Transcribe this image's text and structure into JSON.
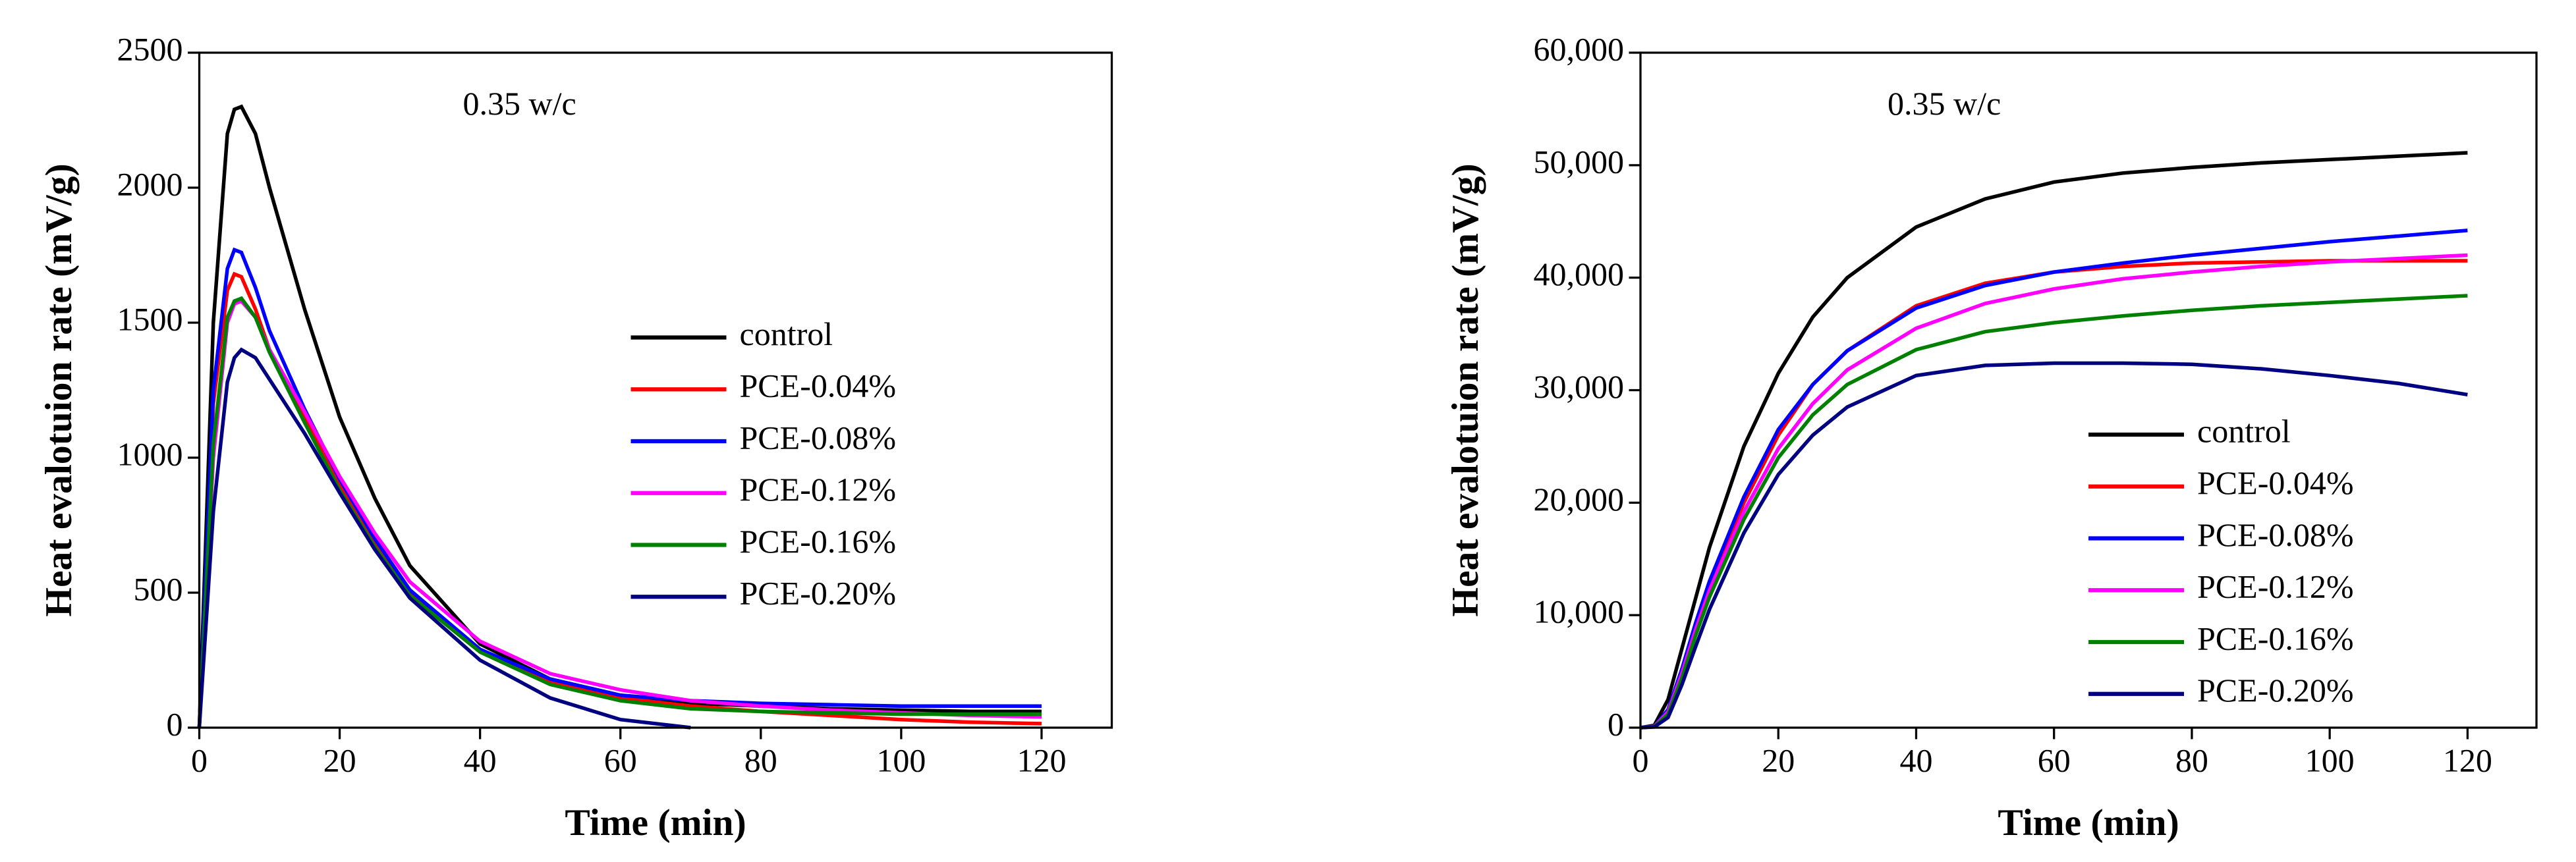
{
  "chart_data": [
    {
      "type": "line",
      "annotation": "0.35 w/c",
      "x_label": "Time (min)",
      "y_label": "Heat evalotuion rate (mV/g)",
      "xlim": [
        0,
        130
      ],
      "xticks": [
        0,
        20,
        40,
        60,
        80,
        100,
        120
      ],
      "ylim": [
        0,
        2500
      ],
      "yticks": [
        0,
        500,
        1000,
        1500,
        2000,
        2500
      ],
      "legend": "center-right",
      "x": [
        0,
        2,
        4,
        5,
        6,
        8,
        10,
        15,
        20,
        25,
        30,
        40,
        50,
        60,
        70,
        80,
        90,
        100,
        110,
        120
      ],
      "series": [
        {
          "name": "control",
          "color": "#000000",
          "values": [
            0,
            1500,
            2200,
            2290,
            2300,
            2200,
            2000,
            1550,
            1150,
            850,
            600,
            310,
            180,
            120,
            90,
            80,
            70,
            65,
            60,
            60
          ]
        },
        {
          "name": "PCE-0.04%",
          "color": "#ff0000",
          "values": [
            0,
            1200,
            1620,
            1680,
            1670,
            1550,
            1400,
            1150,
            900,
            680,
            500,
            290,
            170,
            110,
            80,
            60,
            45,
            30,
            20,
            15
          ]
        },
        {
          "name": "PCE-0.08%",
          "color": "#0000ff",
          "values": [
            0,
            1250,
            1700,
            1770,
            1760,
            1630,
            1470,
            1180,
            920,
            700,
            510,
            290,
            180,
            120,
            100,
            90,
            85,
            80,
            80,
            80
          ]
        },
        {
          "name": "PCE-0.12%",
          "color": "#ff00ff",
          "values": [
            0,
            1000,
            1500,
            1570,
            1580,
            1520,
            1400,
            1170,
            930,
            720,
            540,
            320,
            200,
            140,
            100,
            80,
            65,
            55,
            45,
            40
          ]
        },
        {
          "name": "PCE-0.16%",
          "color": "#008000",
          "values": [
            0,
            1050,
            1520,
            1580,
            1590,
            1520,
            1390,
            1130,
            880,
            670,
            490,
            280,
            160,
            100,
            70,
            60,
            55,
            50,
            50,
            50
          ]
        },
        {
          "name": "PCE-0.20%",
          "color": "#000080",
          "values": [
            0,
            800,
            1280,
            1370,
            1400,
            1370,
            1290,
            1090,
            870,
            660,
            480,
            250,
            110,
            30,
            0,
            null,
            null,
            null,
            null,
            null
          ]
        }
      ]
    },
    {
      "type": "line",
      "annotation": "0.35 w/c",
      "x_label": "Time (min)",
      "y_label": "Heat evalotuion rate (mV/g)",
      "xlim": [
        0,
        130
      ],
      "xticks": [
        0,
        20,
        40,
        60,
        80,
        100,
        120
      ],
      "ylim": [
        0,
        60000
      ],
      "yticks": [
        0,
        {
          "value": 10000,
          "label": "10,000"
        },
        {
          "value": 20000,
          "label": "20,000"
        },
        {
          "value": 30000,
          "label": "30,000"
        },
        {
          "value": 40000,
          "label": "40,000"
        },
        {
          "value": 50000,
          "label": "50,000"
        },
        {
          "value": 60000,
          "label": "60,000"
        }
      ],
      "legend": "lower-right",
      "x": [
        0,
        2,
        4,
        6,
        8,
        10,
        15,
        20,
        25,
        30,
        40,
        50,
        60,
        70,
        80,
        90,
        100,
        110,
        120
      ],
      "series": [
        {
          "name": "control",
          "color": "#000000",
          "values": [
            0,
            200,
            2500,
            7000,
            11500,
            16000,
            25000,
            31500,
            36500,
            40000,
            44500,
            47000,
            48500,
            49300,
            49800,
            50200,
            50500,
            50800,
            51100
          ]
        },
        {
          "name": "PCE-0.04%",
          "color": "#ff0000",
          "values": [
            0,
            100,
            1500,
            5000,
            9000,
            12500,
            20000,
            26000,
            30500,
            33500,
            37500,
            39500,
            40500,
            41000,
            41300,
            41400,
            41500,
            41500,
            41500
          ]
        },
        {
          "name": "PCE-0.08%",
          "color": "#0000ff",
          "values": [
            0,
            100,
            1600,
            5200,
            9300,
            13000,
            20500,
            26500,
            30500,
            33500,
            37300,
            39300,
            40500,
            41300,
            42000,
            42600,
            43200,
            43700,
            44200
          ]
        },
        {
          "name": "PCE-0.12%",
          "color": "#ff00ff",
          "values": [
            0,
            100,
            1400,
            4800,
            8700,
            12200,
            19200,
            24800,
            28800,
            31800,
            35500,
            37700,
            39000,
            39900,
            40500,
            41000,
            41400,
            41700,
            42000
          ]
        },
        {
          "name": "PCE-0.16%",
          "color": "#008000",
          "values": [
            0,
            80,
            1200,
            4400,
            8200,
            11600,
            18500,
            24000,
            27800,
            30500,
            33600,
            35200,
            36000,
            36600,
            37100,
            37500,
            37800,
            38100,
            38400
          ]
        },
        {
          "name": "PCE-0.20%",
          "color": "#000080",
          "values": [
            0,
            60,
            900,
            3800,
            7200,
            10500,
            17300,
            22500,
            26000,
            28500,
            31300,
            32200,
            32400,
            32400,
            32300,
            31900,
            31300,
            30600,
            29600
          ]
        }
      ]
    }
  ]
}
